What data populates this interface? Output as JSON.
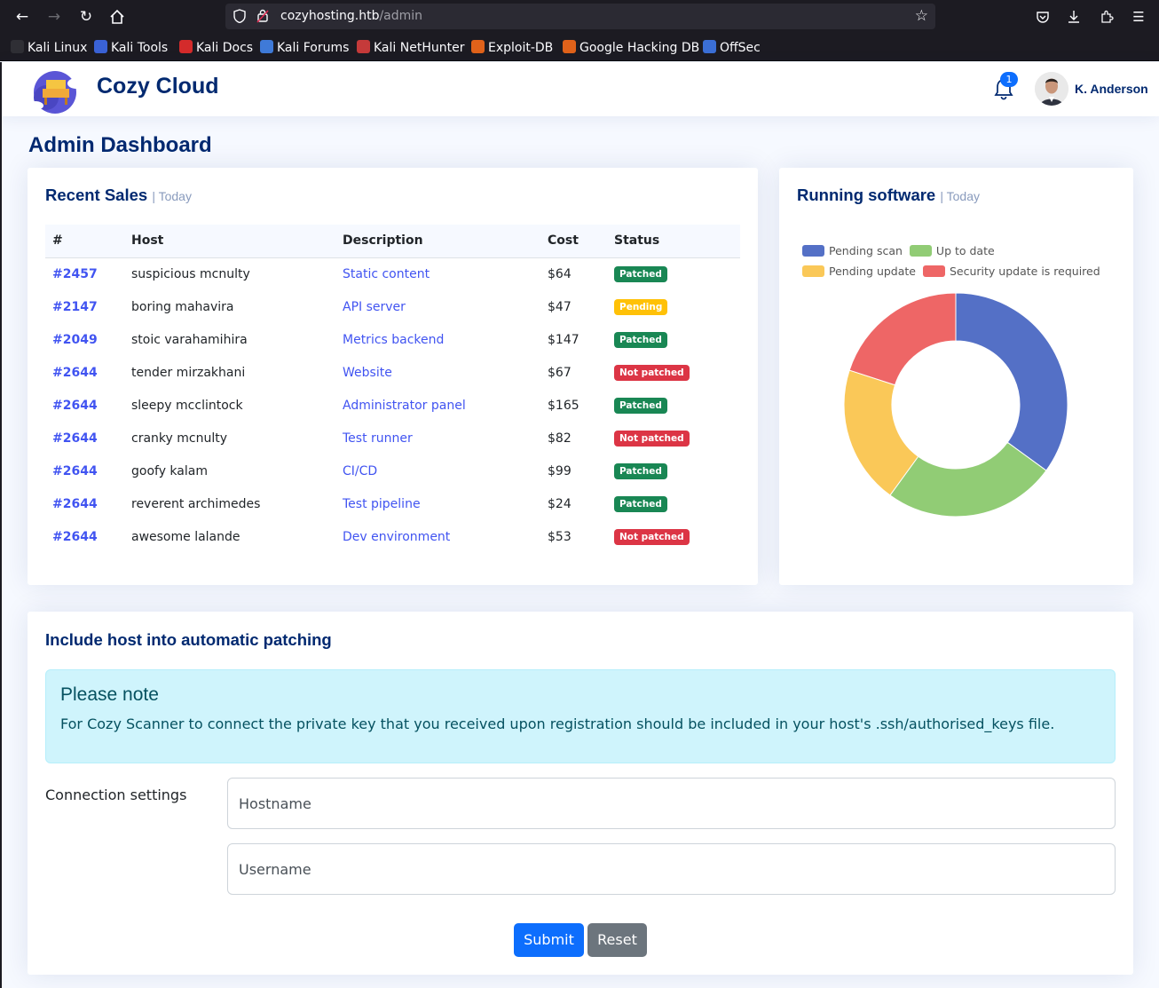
{
  "browser": {
    "url_host": "cozyhosting.htb",
    "url_path": "/admin",
    "bookmarks": [
      {
        "label": "Kali Linux",
        "color": "#2f2f35"
      },
      {
        "label": "Kali Tools",
        "color": "#3a62d6"
      },
      {
        "label": "Kali Docs",
        "color": "#d42b2b"
      },
      {
        "label": "Kali Forums",
        "color": "#3f7ad8"
      },
      {
        "label": "Kali NetHunter",
        "color": "#c53a3a"
      },
      {
        "label": "Exploit-DB",
        "color": "#e0621a"
      },
      {
        "label": "Google Hacking DB",
        "color": "#e0621a"
      },
      {
        "label": "OffSec",
        "color": "#3b6fd6"
      }
    ]
  },
  "header": {
    "brand": "Cozy Cloud",
    "notification_count": "1",
    "user_name": "K. Anderson"
  },
  "page": {
    "title": "Admin Dashboard"
  },
  "sales": {
    "title": "Recent Sales",
    "subtitle": "| Today",
    "columns": [
      "#",
      "Host",
      "Description",
      "Cost",
      "Status"
    ],
    "rows": [
      {
        "id": "#2457",
        "host": "suspicious mcnulty",
        "description": "Static content",
        "cost": "$64",
        "status": "Patched",
        "status_type": "success"
      },
      {
        "id": "#2147",
        "host": "boring mahavira",
        "description": "API server",
        "cost": "$47",
        "status": "Pending",
        "status_type": "warning"
      },
      {
        "id": "#2049",
        "host": "stoic varahamihira",
        "description": "Metrics backend",
        "cost": "$147",
        "status": "Patched",
        "status_type": "success"
      },
      {
        "id": "#2644",
        "host": "tender mirzakhani",
        "description": "Website",
        "cost": "$67",
        "status": "Not patched",
        "status_type": "danger"
      },
      {
        "id": "#2644",
        "host": "sleepy mcclintock",
        "description": "Administrator panel",
        "cost": "$165",
        "status": "Patched",
        "status_type": "success"
      },
      {
        "id": "#2644",
        "host": "cranky mcnulty",
        "description": "Test runner",
        "cost": "$82",
        "status": "Not patched",
        "status_type": "danger"
      },
      {
        "id": "#2644",
        "host": "goofy kalam",
        "description": "CI/CD",
        "cost": "$99",
        "status": "Patched",
        "status_type": "success"
      },
      {
        "id": "#2644",
        "host": "reverent archimedes",
        "description": "Test pipeline",
        "cost": "$24",
        "status": "Patched",
        "status_type": "success"
      },
      {
        "id": "#2644",
        "host": "awesome lalande",
        "description": "Dev environment",
        "cost": "$53",
        "status": "Not patched",
        "status_type": "danger"
      }
    ]
  },
  "software": {
    "title": "Running software",
    "subtitle": "| Today"
  },
  "chart_data": {
    "type": "pie",
    "categories": [
      "Pending scan",
      "Up to date",
      "Pending update",
      "Security update is required"
    ],
    "values": [
      35,
      25,
      20,
      20
    ],
    "colors": [
      "#5470c6",
      "#91cc75",
      "#fac858",
      "#ee6666"
    ],
    "donut": true,
    "legend_position": "top"
  },
  "patching": {
    "title": "Include host into automatic patching",
    "note_title": "Please note",
    "note_text": "For Cozy Scanner to connect the private key that you received upon registration should be included in your host's .ssh/authorised_keys file.",
    "label": "Connection settings",
    "hostname_placeholder": "Hostname",
    "username_placeholder": "Username",
    "submit_label": "Submit",
    "reset_label": "Reset"
  }
}
